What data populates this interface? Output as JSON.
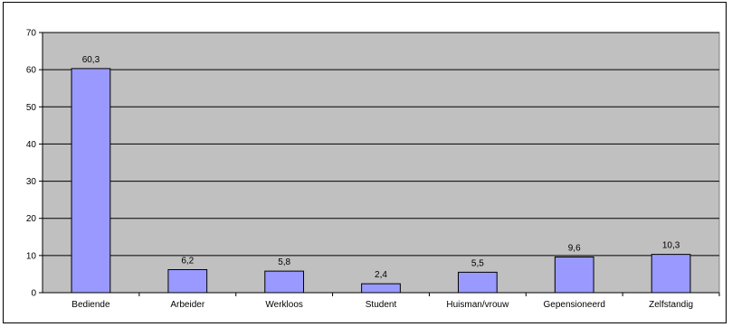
{
  "chart_data": {
    "type": "bar",
    "categories": [
      "Bediende",
      "Arbeider",
      "Werkloos",
      "Student",
      "Huisman/vrouw",
      "Gepensioneerd",
      "Zelfstandig"
    ],
    "values": [
      60.3,
      6.2,
      5.8,
      2.4,
      5.5,
      9.6,
      10.3
    ],
    "data_labels": [
      "60,3",
      "6,2",
      "5,8",
      "2,4",
      "5,5",
      "9,6",
      "10,3"
    ],
    "ylim": [
      0,
      70
    ],
    "yticks": [
      0,
      10,
      20,
      30,
      40,
      50,
      60,
      70
    ],
    "grid": true,
    "plot_background": "#c0c0c0",
    "bar_color": "#9999ff",
    "legend": "none"
  }
}
